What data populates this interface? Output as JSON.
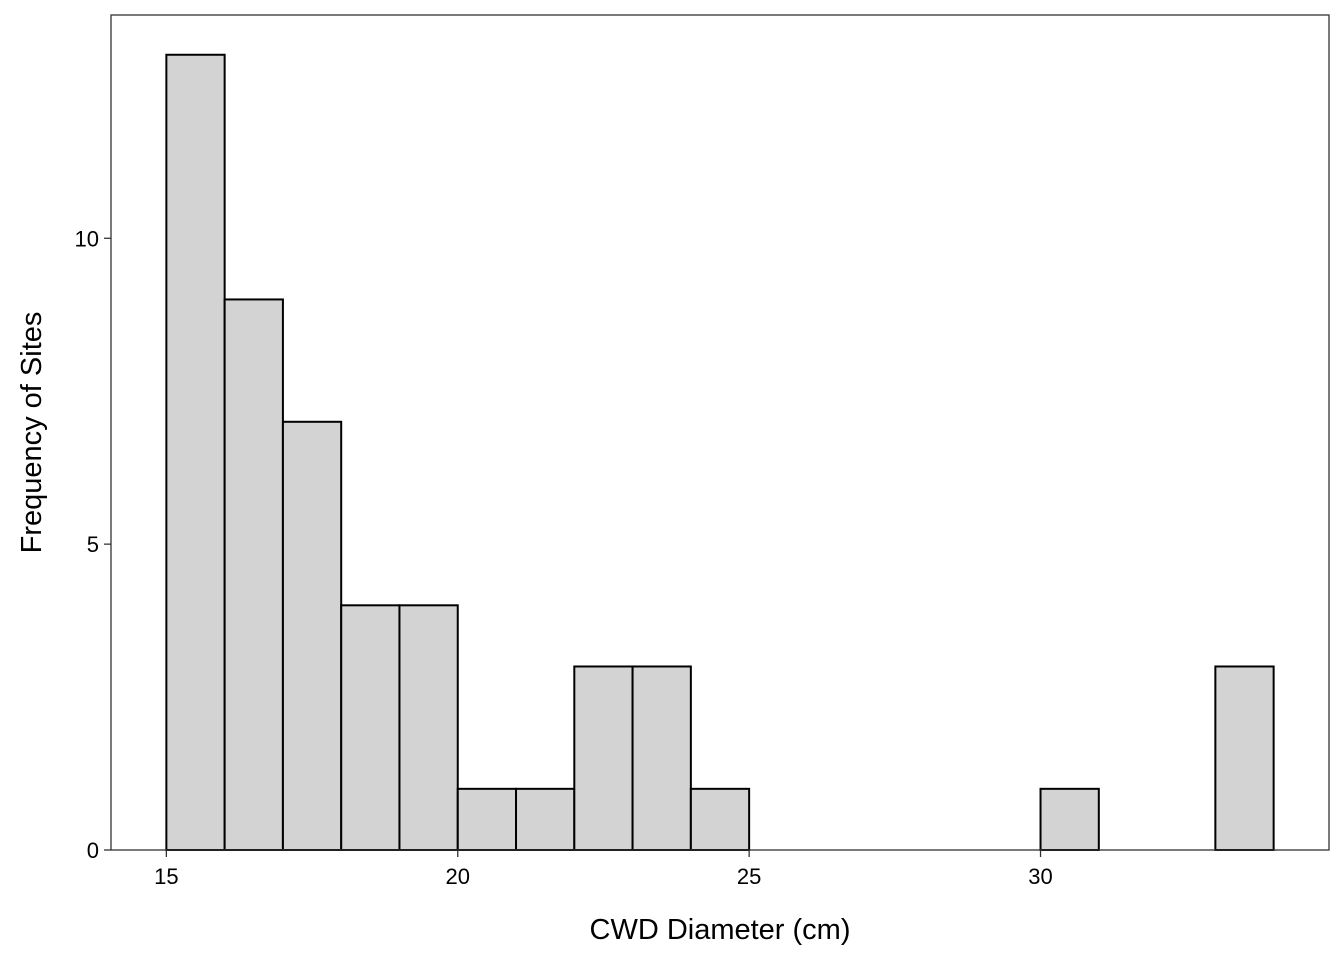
{
  "chart_data": {
    "type": "bar",
    "subtype": "histogram",
    "title": "",
    "xlabel": "CWD Diameter (cm)",
    "ylabel": "Frequency of Sites",
    "bin_width": 1,
    "bins": [
      {
        "start": 15,
        "end": 16,
        "count": 13
      },
      {
        "start": 16,
        "end": 17,
        "count": 9
      },
      {
        "start": 17,
        "end": 18,
        "count": 7
      },
      {
        "start": 18,
        "end": 19,
        "count": 4
      },
      {
        "start": 19,
        "end": 20,
        "count": 4
      },
      {
        "start": 20,
        "end": 21,
        "count": 1
      },
      {
        "start": 21,
        "end": 22,
        "count": 1
      },
      {
        "start": 22,
        "end": 23,
        "count": 3
      },
      {
        "start": 23,
        "end": 24,
        "count": 3
      },
      {
        "start": 24,
        "end": 25,
        "count": 1
      },
      {
        "start": 30,
        "end": 31,
        "count": 1
      },
      {
        "start": 33,
        "end": 34,
        "count": 3
      }
    ],
    "xlim": [
      14.05,
      34.95
    ],
    "ylim": [
      0,
      13.65
    ],
    "x_ticks": [
      15,
      20,
      25,
      30
    ],
    "x_tick_labels": [
      "15",
      "20",
      "25",
      "30"
    ],
    "y_ticks": [
      0,
      5,
      10
    ],
    "y_tick_labels": [
      "0",
      "5",
      "10"
    ],
    "grid": false,
    "legend": "none",
    "bar_fill": "#d3d3d3",
    "bar_stroke": "#000000",
    "panel_border": "#333333"
  }
}
